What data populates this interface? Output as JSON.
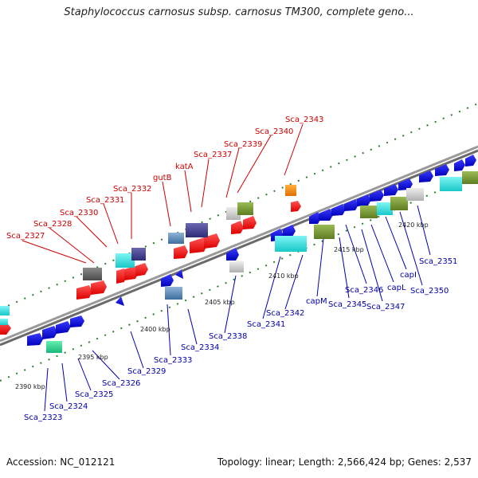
{
  "title": "Staphylococcus carnosus subsp. carnosus TM300, complete geno...",
  "footer": {
    "accession": "Accession: NC_012121",
    "info": "Topology: linear; Length: 2,566,424 bp; Genes: 2,537"
  },
  "colors": {
    "forward_strand": "#ff0000",
    "reverse_strand": "#0000dd",
    "top_labels": "#cc0000",
    "bottom_labels": "#0000aa",
    "backbone": "#888888",
    "tick": "#2e7d2e"
  },
  "kbp_labels": [
    "2390 kbp",
    "2395 kbp",
    "2400 kbp",
    "2405 kbp",
    "2410 kbp",
    "2415 kbp",
    "2420 kbp"
  ],
  "top_genes": [
    "Sca_2327",
    "Sca_2328",
    "Sca_2330",
    "Sca_2331",
    "Sca_2332",
    "gutB",
    "katA",
    "Sca_2337",
    "Sca_2339",
    "Sca_2340",
    "Sca_2343"
  ],
  "bottom_genes": [
    "Sca_2323",
    "Sca_2324",
    "Sca_2325",
    "Sca_2326",
    "Sca_2329",
    "Sca_2333",
    "Sca_2334",
    "Sca_2338",
    "Sca_2341",
    "Sca_2342",
    "capM",
    "Sca_2345",
    "Sca_2346",
    "Sca_2347",
    "capL",
    "capI",
    "Sca_2350",
    "Sca_2351"
  ]
}
